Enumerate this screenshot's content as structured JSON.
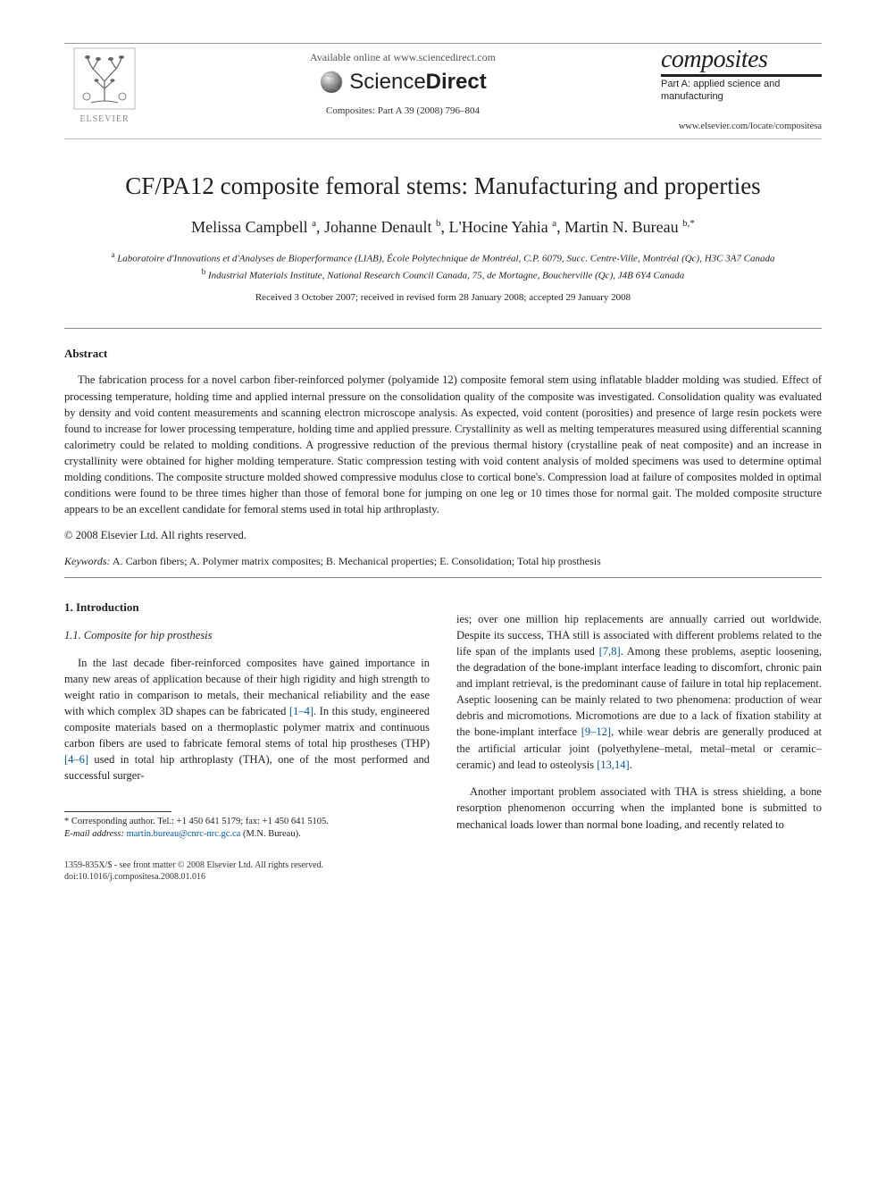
{
  "header": {
    "publisher": "ELSEVIER",
    "available_online": "Available online at www.sciencedirect.com",
    "sd_brand_1": "Science",
    "sd_brand_2": "Direct",
    "citation": "Composites: Part A 39 (2008) 796–804",
    "journal_title": "composites",
    "journal_sub": "Part A: applied science and manufacturing",
    "journal_url": "www.elsevier.com/locate/compositesa"
  },
  "article": {
    "title": "CF/PA12 composite femoral stems: Manufacturing and properties",
    "authors_html": "Melissa Campbell <sup>a</sup>, Johanne Denault <sup>b</sup>, L'Hocine Yahia <sup>a</sup>, Martin N. Bureau <sup>b,*</sup>",
    "affiliations": [
      "a Laboratoire d'Innovations et d'Analyses de Bioperformance (LIAB), École Polytechnique de Montréal, C.P. 6079, Succ. Centre-Ville, Montréal (Qc), H3C 3A7 Canada",
      "b Industrial Materials Institute, National Research Council Canada, 75, de Mortagne, Boucherville (Qc), J4B 6Y4 Canada"
    ],
    "received": "Received 3 October 2007; received in revised form 28 January 2008; accepted 29 January 2008"
  },
  "abstract": {
    "heading": "Abstract",
    "text": "The fabrication process for a novel carbon fiber-reinforced polymer (polyamide 12) composite femoral stem using inflatable bladder molding was studied. Effect of processing temperature, holding time and applied internal pressure on the consolidation quality of the composite was investigated. Consolidation quality was evaluated by density and void content measurements and scanning electron microscope analysis. As expected, void content (porosities) and presence of large resin pockets were found to increase for lower processing temperature, holding time and applied pressure. Crystallinity as well as melting temperatures measured using differential scanning calorimetry could be related to molding conditions. A progressive reduction of the previous thermal history (crystalline peak of neat composite) and an increase in crystallinity were obtained for higher molding temperature. Static compression testing with void content analysis of molded specimens was used to determine optimal molding conditions. The composite structure molded showed compressive modulus close to cortical bone's. Compression load at failure of composites molded in optimal conditions were found to be three times higher than those of femoral bone for jumping on one leg or 10 times those for normal gait. The molded composite structure appears to be an excellent candidate for femoral stems used in total hip arthroplasty.",
    "copyright": "© 2008 Elsevier Ltd. All rights reserved."
  },
  "keywords": {
    "label": "Keywords:",
    "text": "A. Carbon fibers; A. Polymer matrix composites; B. Mechanical properties; E. Consolidation; Total hip prosthesis"
  },
  "body": {
    "section_num": "1. Introduction",
    "subsection": "1.1. Composite for hip prosthesis",
    "col1_p1_a": "In the last decade fiber-reinforced composites have gained importance in many new areas of application because of their high rigidity and high strength to weight ratio in comparison to metals, their mechanical reliability and the ease with which complex 3D shapes can be fabricated ",
    "col1_ref1": "[1–4]",
    "col1_p1_b": ". In this study, engineered composite materials based on a thermoplastic polymer matrix and continuous carbon fibers are used to fabricate femoral stems of total hip prostheses (THP) ",
    "col1_ref2": "[4–6]",
    "col1_p1_c": " used in total hip arthroplasty (THA), one of the most performed and successful surger-",
    "col2_p1_a": "ies; over one million hip replacements are annually carried out worldwide. Despite its success, THA still is associated with different problems related to the life span of the implants used ",
    "col2_ref1": "[7,8]",
    "col2_p1_b": ". Among these problems, aseptic loosening, the degradation of the bone-implant interface leading to discomfort, chronic pain and implant retrieval, is the predominant cause of failure in total hip replacement. Aseptic loosening can be mainly related to two phenomena: production of wear debris and micromotions. Micromotions are due to a lack of fixation stability at the bone-implant interface ",
    "col2_ref2": "[9–12]",
    "col2_p1_c": ", while wear debris are generally produced at the artificial articular joint (polyethylene–metal, metal–metal or ceramic–ceramic) and lead to osteolysis ",
    "col2_ref3": "[13,14]",
    "col2_p1_d": ".",
    "col2_p2": "Another important problem associated with THA is stress shielding, a bone resorption phenomenon occurring when the implanted bone is submitted to mechanical loads lower than normal bone loading, and recently related to"
  },
  "footnote": {
    "corresponding": "* Corresponding author. Tel.: +1 450 641 5179; fax: +1 450 641 5105.",
    "email_label": "E-mail address:",
    "email": "martin.bureau@cnrc-nrc.gc.ca",
    "email_who": "(M.N. Bureau)."
  },
  "footer": {
    "line1": "1359-835X/$ - see front matter © 2008 Elsevier Ltd. All rights reserved.",
    "line2": "doi:10.1016/j.compositesa.2008.01.016"
  },
  "colors": {
    "link": "#0054a6",
    "text": "#231f20",
    "rule": "#888888"
  }
}
